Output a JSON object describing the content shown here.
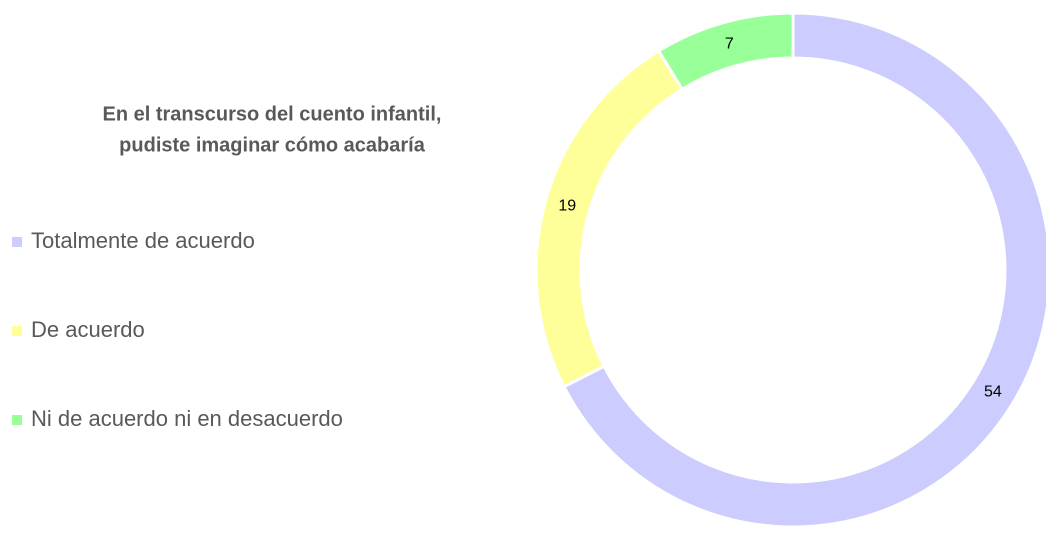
{
  "chart_data": {
    "type": "doughnut",
    "title": [
      "En el transcurso del cuento infantil,",
      "pudiste imaginar cómo acabaría"
    ],
    "categories": [
      "Totalmente de acuerdo",
      "De acuerdo",
      "Ni de acuerdo ni en desacuerdo"
    ],
    "values": [
      54,
      19,
      7
    ],
    "colors": [
      "#ccccff",
      "#ffff99",
      "#99ff99"
    ],
    "legend": "left"
  }
}
